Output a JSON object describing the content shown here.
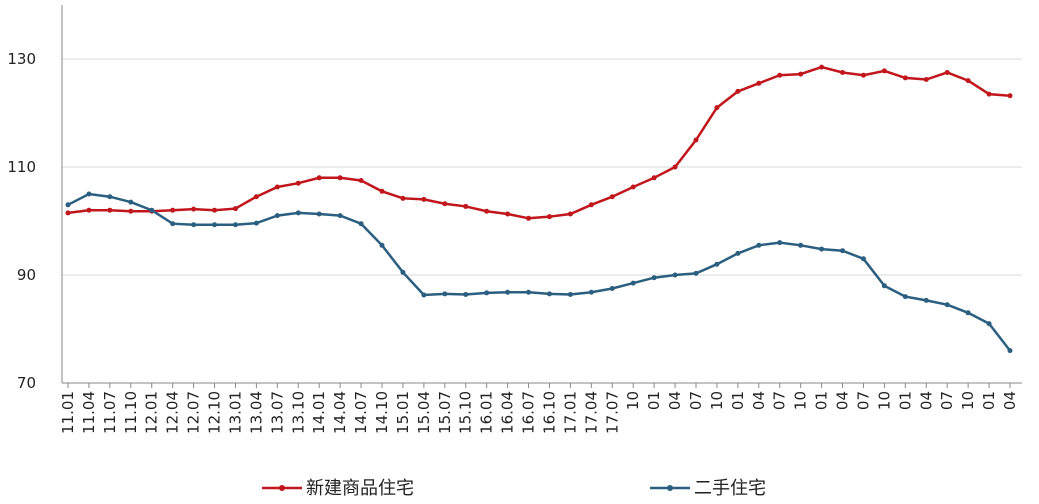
{
  "chart_data": {
    "type": "line",
    "categories": [
      "11.01",
      "11.04",
      "11.07",
      "11.10",
      "12.01",
      "12.04",
      "12.07",
      "12.10",
      "13.01",
      "13.04",
      "13.07",
      "13.10",
      "14.01",
      "14.04",
      "14.07",
      "14.10",
      "15.01",
      "15.04",
      "15.07",
      "15.10",
      "16.01",
      "16.04",
      "16.07",
      "16.10",
      "17.01",
      "17.04",
      "17.07",
      "10",
      "01",
      "04",
      "07",
      "10",
      "01",
      "04",
      "07",
      "10",
      "01",
      "04",
      "07",
      "10",
      "01",
      "04",
      "07",
      "10",
      "01",
      "04"
    ],
    "series": [
      {
        "name": "新建商品住宅",
        "color": "#c0161c",
        "values": [
          101.5,
          102,
          102,
          101.8,
          101.8,
          102,
          102.2,
          102,
          102.3,
          104.5,
          106.3,
          107,
          108,
          108,
          107.5,
          105.5,
          104.2,
          104,
          103.2,
          102.7,
          101.8,
          101.3,
          100.5,
          100.8,
          101.3,
          103,
          104.5,
          106.3,
          108,
          110,
          115,
          121,
          124,
          125.5,
          127,
          127.2,
          128.5,
          127.5,
          127,
          127.8,
          126.5,
          126.2,
          127.5,
          126,
          123.5,
          123.2
        ]
      },
      {
        "name": "二手住宅",
        "color": "#2b5f80",
        "values": [
          103,
          105,
          104.5,
          103.5,
          102,
          99.5,
          99.3,
          99.3,
          99.3,
          99.6,
          101,
          101.5,
          101.3,
          101,
          99.5,
          95.5,
          90.5,
          86.3,
          86.5,
          86.4,
          86.7,
          86.8,
          86.8,
          86.5,
          86.4,
          86.8,
          87.5,
          88.5,
          89.5,
          90,
          90.3,
          92,
          94,
          95.5,
          96,
          95.5,
          94.8,
          94.5,
          93,
          88,
          86,
          85.3,
          84.5,
          83,
          81,
          76
        ]
      }
    ],
    "ylim": [
      70,
      140
    ],
    "yticks": [
      70,
      90,
      110,
      130
    ],
    "grid": true,
    "legend": "bottom"
  }
}
